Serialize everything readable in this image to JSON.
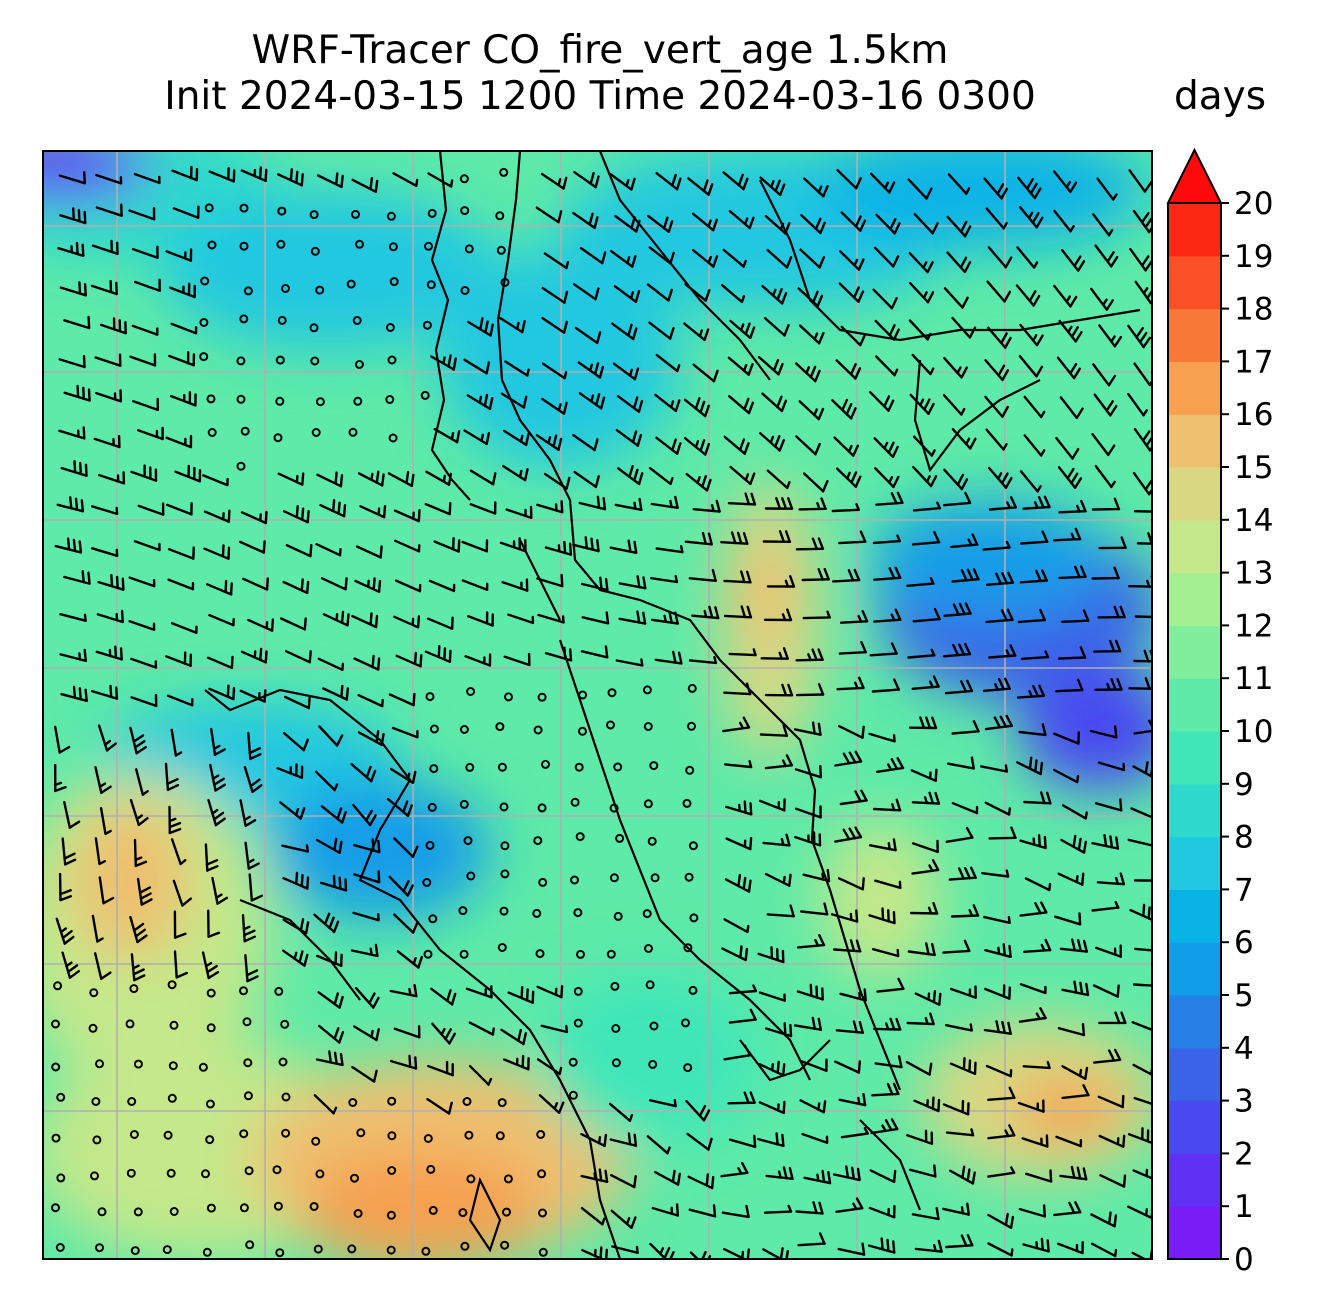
{
  "title": {
    "line1": "WRF-Tracer CO_fire_vert_age 1.5km",
    "line2": "Init 2024-03-15 1200 Time 2024-03-16 0300"
  },
  "colorbar": {
    "units_label": "days",
    "min": 0,
    "max": 20,
    "step": 1,
    "extend": "max",
    "tick_labels": [
      "0",
      "1",
      "2",
      "3",
      "4",
      "5",
      "6",
      "7",
      "8",
      "9",
      "10",
      "11",
      "12",
      "13",
      "14",
      "15",
      "16",
      "17",
      "18",
      "19",
      "20"
    ],
    "colors": [
      "#7a1cf5",
      "#6030f5",
      "#4a48f0",
      "#3a63e8",
      "#2780e6",
      "#129de8",
      "#0ab3e6",
      "#20c8e0",
      "#2ed9cc",
      "#40e6b8",
      "#5eeaa8",
      "#80ee9c",
      "#a4f090",
      "#c4e88a",
      "#d8d882",
      "#eec070",
      "#f6a050",
      "#f87838",
      "#fa5028",
      "#fc2814"
    ],
    "extend_color": "#ff0a0a"
  },
  "map": {
    "gridlines": true,
    "wind_barbs": true,
    "calm_marker": "circle",
    "coastline": true
  }
}
